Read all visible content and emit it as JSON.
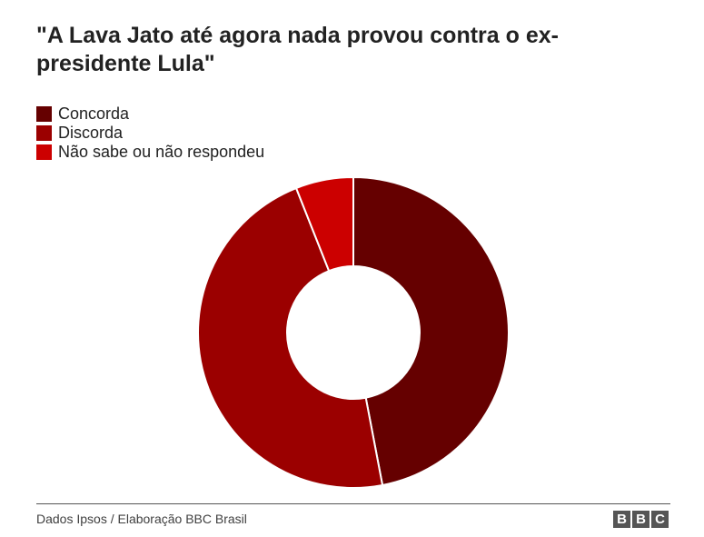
{
  "title": "\"A Lava Jato até agora nada provou contra o ex-presidente Lula\"",
  "source": "Dados Ipsos / Elaboração BBC Brasil",
  "logo": {
    "letters": [
      "B",
      "B",
      "C"
    ]
  },
  "chart_data": {
    "type": "pie",
    "variant": "donut",
    "title": "\"A Lava Jato até agora nada provou contra o ex-presidente Lula\"",
    "legend_position": "top-left",
    "categories": [
      "Concorda",
      "Discorda",
      "Não sabe ou não respondeu"
    ],
    "values": [
      47,
      47,
      6
    ],
    "colors": [
      "#650000",
      "#9b0000",
      "#cc0000"
    ]
  }
}
